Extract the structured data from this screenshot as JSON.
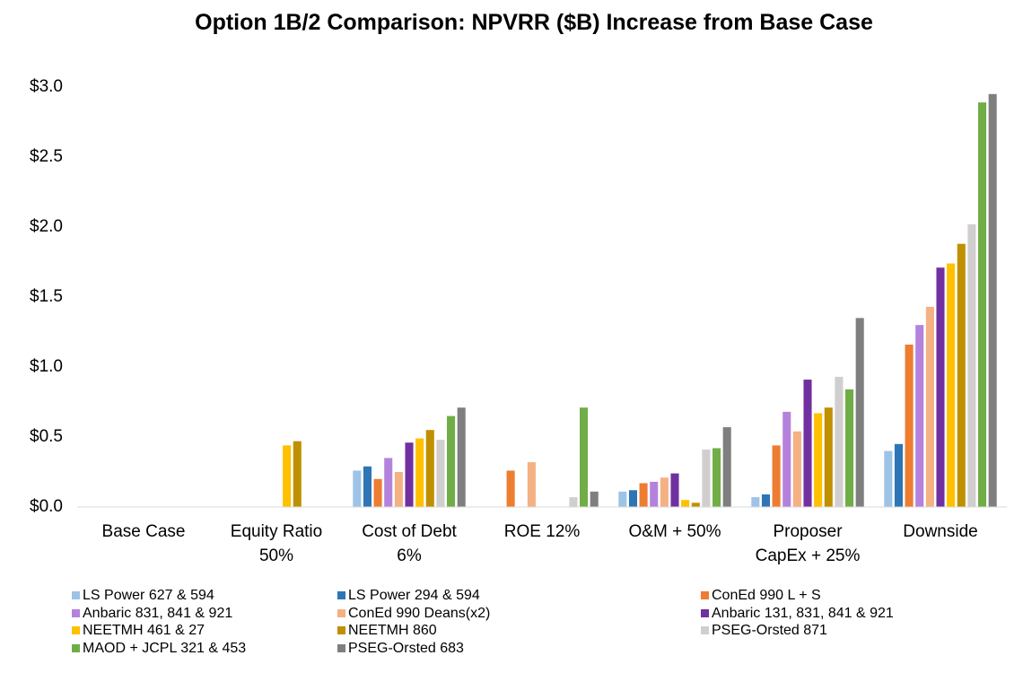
{
  "chart_data": {
    "type": "bar",
    "title": "Option 1B/2 Comparison: NPVRR ($B) Increase from Base Case",
    "categories": [
      "Base Case",
      "Equity Ratio 50%",
      "Cost of Debt 6%",
      "ROE 12%",
      "O&M + 50%",
      "Proposer CapEx + 25%",
      "Downside"
    ],
    "ylim": [
      0,
      3.0
    ],
    "yticks": [
      {
        "value": 0,
        "label": "$0.0"
      },
      {
        "value": 0.5,
        "label": "$0.5"
      },
      {
        "value": 1.0,
        "label": "$1.0"
      },
      {
        "value": 1.5,
        "label": "$1.5"
      },
      {
        "value": 2.0,
        "label": "$2.0"
      },
      {
        "value": 2.5,
        "label": "$2.5"
      },
      {
        "value": 3.0,
        "label": "$3.0"
      }
    ],
    "grid": false,
    "legend": "bottom",
    "series": [
      {
        "name": "LS Power 627 & 594",
        "color": "#9dc3e6",
        "values": [
          0,
          0,
          0.26,
          0,
          0.11,
          0.07,
          0.4
        ]
      },
      {
        "name": "LS Power 294 & 594",
        "color": "#2e75b6",
        "values": [
          0,
          0,
          0.29,
          0,
          0.12,
          0.09,
          0.45
        ]
      },
      {
        "name": "ConEd 990 L + S",
        "color": "#ed7d31",
        "values": [
          0,
          0,
          0.2,
          0.26,
          0.17,
          0.44,
          1.16
        ]
      },
      {
        "name": "Anbaric 831, 841 & 921",
        "color": "#b482dc",
        "values": [
          0,
          0,
          0.35,
          0,
          0.18,
          0.68,
          1.3
        ]
      },
      {
        "name": "ConEd 990 Deans(x2)",
        "color": "#f4b183",
        "values": [
          0,
          0,
          0.25,
          0.32,
          0.21,
          0.54,
          1.43
        ]
      },
      {
        "name": "Anbaric 131, 831, 841 & 921",
        "color": "#7030a0",
        "values": [
          0,
          0,
          0.46,
          0,
          0.24,
          0.91,
          1.71
        ]
      },
      {
        "name": "NEETMH  461 & 27",
        "color": "#ffc000",
        "values": [
          0,
          0.44,
          0.49,
          0,
          0.05,
          0.67,
          1.74
        ]
      },
      {
        "name": "NEETMH  860",
        "color": "#bf9000",
        "values": [
          0,
          0.47,
          0.55,
          0,
          0.03,
          0.71,
          1.88
        ]
      },
      {
        "name": "PSEG-Orsted 871",
        "color": "#d0cece",
        "values": [
          0,
          0,
          0.48,
          0.07,
          0.41,
          0.93,
          2.02
        ]
      },
      {
        "name": "MAOD + JCPL 321 & 453",
        "color": "#70ad47",
        "values": [
          0,
          0,
          0.65,
          0.71,
          0.42,
          0.84,
          2.89
        ]
      },
      {
        "name": "PSEG-Orsted 683",
        "color": "#7f7f7f",
        "values": [
          0,
          0,
          0.71,
          0.11,
          0.57,
          1.35,
          2.95
        ]
      }
    ]
  }
}
